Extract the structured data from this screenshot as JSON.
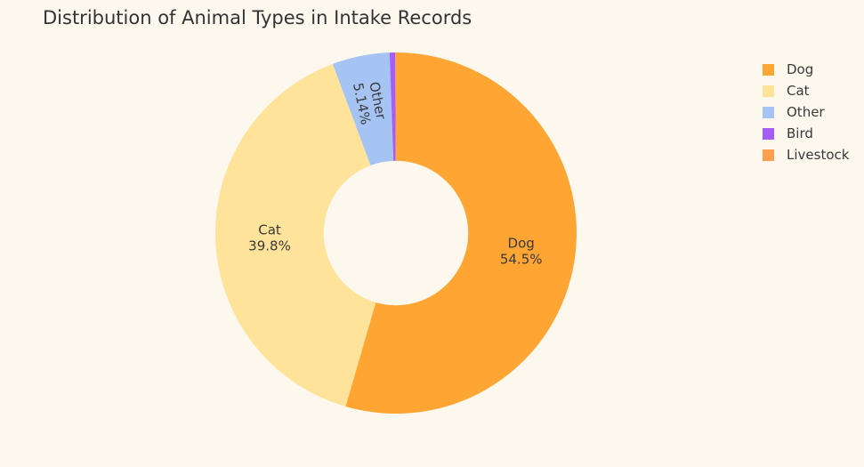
{
  "chart_data": {
    "type": "pie",
    "hole": 0.4,
    "title": "Distribution of Animal Types in Intake Records",
    "categories": [
      "Dog",
      "Cat",
      "Other",
      "Bird",
      "Livestock"
    ],
    "values": [
      54.5,
      39.8,
      5.14,
      0.5,
      0.06
    ],
    "colors": [
      "#ffa533",
      "#ffe39b",
      "#a6c4f3",
      "#a45ef6",
      "#ff9f4f"
    ],
    "slice_labels": [
      {
        "name": "Dog",
        "percent": "54.5%"
      },
      {
        "name": "Cat",
        "percent": "39.8%"
      },
      {
        "name": "Other",
        "percent": "5.14%"
      },
      {
        "name": "",
        "percent": ""
      },
      {
        "name": "",
        "percent": ""
      }
    ],
    "legend": {
      "placement": "right",
      "entries": [
        "Dog",
        "Cat",
        "Other",
        "Bird",
        "Livestock"
      ]
    }
  },
  "colors": {
    "background": "#fdf8ee",
    "text": "#3a3a3a"
  }
}
